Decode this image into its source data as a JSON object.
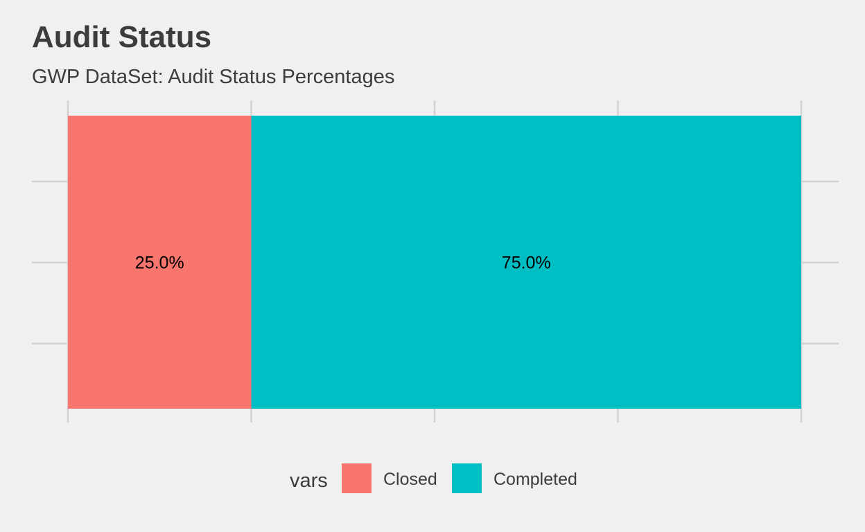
{
  "chart_data": {
    "type": "bar",
    "orientation": "horizontal",
    "stacked": true,
    "title": "Audit Status",
    "subtitle": "GWP DataSet: Audit Status Percentages",
    "xlabel": "",
    "ylabel": "",
    "xlim": [
      0,
      100
    ],
    "grid": true,
    "legend_position": "bottom",
    "legend_title": "vars",
    "series": [
      {
        "name": "Closed",
        "value": 25.0,
        "label": "25.0%",
        "color": "#F8766D"
      },
      {
        "name": "Completed",
        "value": 75.0,
        "label": "75.0%",
        "color": "#00BFC4"
      }
    ]
  }
}
